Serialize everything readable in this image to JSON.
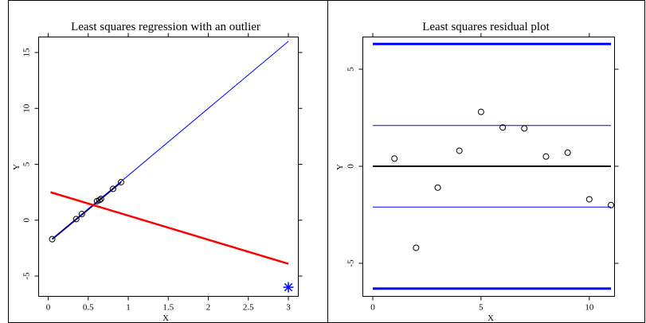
{
  "chart_data": [
    {
      "type": "scatter",
      "title": "Least squares regression with an outlier",
      "xlabel": "X",
      "ylabel": "Y",
      "xlim": [
        0,
        3
      ],
      "ylim": [
        -6,
        16
      ],
      "x_ticks": [
        0,
        0.5,
        1,
        1.5,
        2,
        2.5,
        3
      ],
      "x_tick_labels": [
        "0",
        "0.5",
        "1",
        "1.5",
        "2",
        "2.5",
        "3"
      ],
      "y_ticks": [
        -5,
        0,
        5,
        10,
        15
      ],
      "y_tick_labels": [
        "-5",
        "0",
        "5",
        "10",
        "15"
      ],
      "points": [
        {
          "x": 0.05,
          "y": -1.7
        },
        {
          "x": 0.35,
          "y": 0.1
        },
        {
          "x": 0.42,
          "y": 0.55
        },
        {
          "x": 0.61,
          "y": 1.7
        },
        {
          "x": 0.64,
          "y": 1.8
        },
        {
          "x": 0.66,
          "y": 1.9
        },
        {
          "x": 0.81,
          "y": 2.8
        },
        {
          "x": 0.91,
          "y": 3.4
        }
      ],
      "outlier": {
        "x": 3.0,
        "y": -6.0,
        "marker": "asterisk",
        "color": "#0000ff"
      },
      "lines": [
        {
          "x": [
            0.05,
            3.0
          ],
          "y": [
            -1.7,
            16.0
          ],
          "color": "#0000ff",
          "width": 1
        },
        {
          "x": [
            0.05,
            0.91
          ],
          "y": [
            -1.7,
            3.4
          ],
          "color": "#00008b",
          "width": 2
        },
        {
          "x": [
            0.03,
            3.0
          ],
          "y": [
            2.5,
            -3.9
          ],
          "color": "#ff0000",
          "width": 2.5
        }
      ]
    },
    {
      "type": "scatter",
      "title": "Least squares residual plot",
      "xlabel": "X",
      "ylabel": "Y",
      "xlim": [
        0,
        11
      ],
      "ylim": [
        -6.6,
        6.6
      ],
      "x_ticks": [
        0,
        5,
        10
      ],
      "x_tick_labels": [
        "0",
        "5",
        "10"
      ],
      "y_ticks": [
        -5,
        0,
        5
      ],
      "y_tick_labels": [
        "-5",
        "0",
        "5"
      ],
      "points": [
        {
          "x": 1,
          "y": 0.4
        },
        {
          "x": 2,
          "y": -4.2
        },
        {
          "x": 3,
          "y": -1.1
        },
        {
          "x": 4,
          "y": 0.8
        },
        {
          "x": 5,
          "y": 2.8
        },
        {
          "x": 6,
          "y": 2.0
        },
        {
          "x": 7,
          "y": 1.95
        },
        {
          "x": 8,
          "y": 0.5
        },
        {
          "x": 9,
          "y": 0.7
        },
        {
          "x": 10,
          "y": -1.7
        },
        {
          "x": 11,
          "y": -2.0
        }
      ],
      "hlines": [
        {
          "y": 6.3,
          "color": "#0000ff",
          "width": 3
        },
        {
          "y": 2.1,
          "color": "#0000ff",
          "width": 1
        },
        {
          "y": 0,
          "color": "#000000",
          "width": 2
        },
        {
          "y": -2.1,
          "color": "#0000ff",
          "width": 1
        },
        {
          "y": -6.3,
          "color": "#0000ff",
          "width": 3
        }
      ]
    }
  ]
}
